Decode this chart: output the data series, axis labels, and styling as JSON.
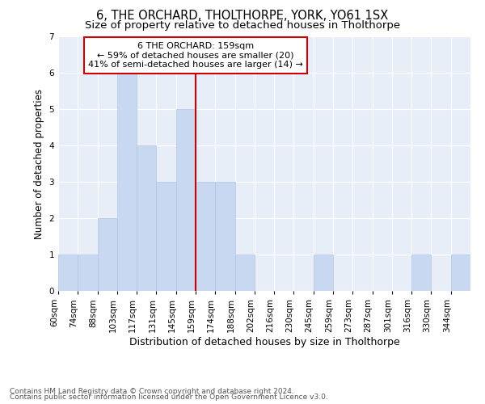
{
  "title": "6, THE ORCHARD, THOLTHORPE, YORK, YO61 1SX",
  "subtitle": "Size of property relative to detached houses in Tholthorpe",
  "xlabel": "Distribution of detached houses by size in Tholthorpe",
  "ylabel": "Number of detached properties",
  "bar_color": "#c8d8f0",
  "bar_edge_color": "#aec4e8",
  "background_color": "#e8eef8",
  "grid_color": "#ffffff",
  "annotation_line1": "6 THE ORCHARD: 159sqm",
  "annotation_line2": "← 59% of detached houses are smaller (20)",
  "annotation_line3": "41% of semi-detached houses are larger (14) →",
  "vline_color": "#cc0000",
  "annotation_box_edge": "#cc0000",
  "counts": [
    1,
    1,
    2,
    6,
    4,
    3,
    5,
    3,
    3,
    1,
    0,
    0,
    0,
    1,
    0,
    0,
    0,
    0,
    1,
    0,
    1
  ],
  "bin_edges": [
    60,
    74,
    88,
    103,
    117,
    131,
    145,
    159,
    174,
    188,
    202,
    216,
    230,
    245,
    259,
    273,
    287,
    301,
    316,
    330,
    344,
    358
  ],
  "xlabels": [
    "60sqm",
    "74sqm",
    "88sqm",
    "103sqm",
    "117sqm",
    "131sqm",
    "145sqm",
    "159sqm",
    "174sqm",
    "188sqm",
    "202sqm",
    "216sqm",
    "230sqm",
    "245sqm",
    "259sqm",
    "273sqm",
    "287sqm",
    "301sqm",
    "316sqm",
    "330sqm",
    "344sqm"
  ],
  "vline_bin_index": 7,
  "ylim": [
    0,
    7
  ],
  "yticks": [
    0,
    1,
    2,
    3,
    4,
    5,
    6,
    7
  ],
  "footer1": "Contains HM Land Registry data © Crown copyright and database right 2024.",
  "footer2": "Contains public sector information licensed under the Open Government Licence v3.0.",
  "title_fontsize": 10.5,
  "subtitle_fontsize": 9.5,
  "xlabel_fontsize": 9,
  "ylabel_fontsize": 8.5,
  "tick_fontsize": 7.5,
  "annotation_fontsize": 8,
  "footer_fontsize": 6.5
}
